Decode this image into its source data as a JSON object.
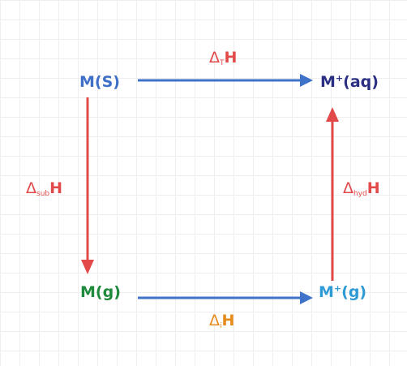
{
  "nodes": {
    "solid": {
      "base": "M(S)",
      "sup": "",
      "tail": "",
      "color": "#3f6fc7"
    },
    "aqueous": {
      "base": "M",
      "sup": "+",
      "tail": "(aq)",
      "color": "#2b2f84"
    },
    "gas": {
      "base": "M(g)",
      "sup": "",
      "tail": "",
      "color": "#1f8a3c"
    },
    "ion_gas": {
      "base": "M",
      "sup": "+",
      "tail": "(g)",
      "color": "#2e9bd6"
    }
  },
  "edges": {
    "solution": {
      "delta": "Δ",
      "sub": "T",
      "letter": "H",
      "color": "#e24a4a"
    },
    "sublimation": {
      "delta": "Δ",
      "sub": "sub",
      "letter": "H",
      "color": "#e24a4a"
    },
    "hydration": {
      "delta": "Δ",
      "sub": "hyd",
      "letter": "H",
      "color": "#e24a4a"
    },
    "ionization": {
      "delta": "Δ",
      "sub": "i",
      "letter": "H",
      "color": "#e68a1c"
    }
  },
  "colors": {
    "arrow_blue": "#3f73c9",
    "arrow_red": "#e24a4a"
  }
}
